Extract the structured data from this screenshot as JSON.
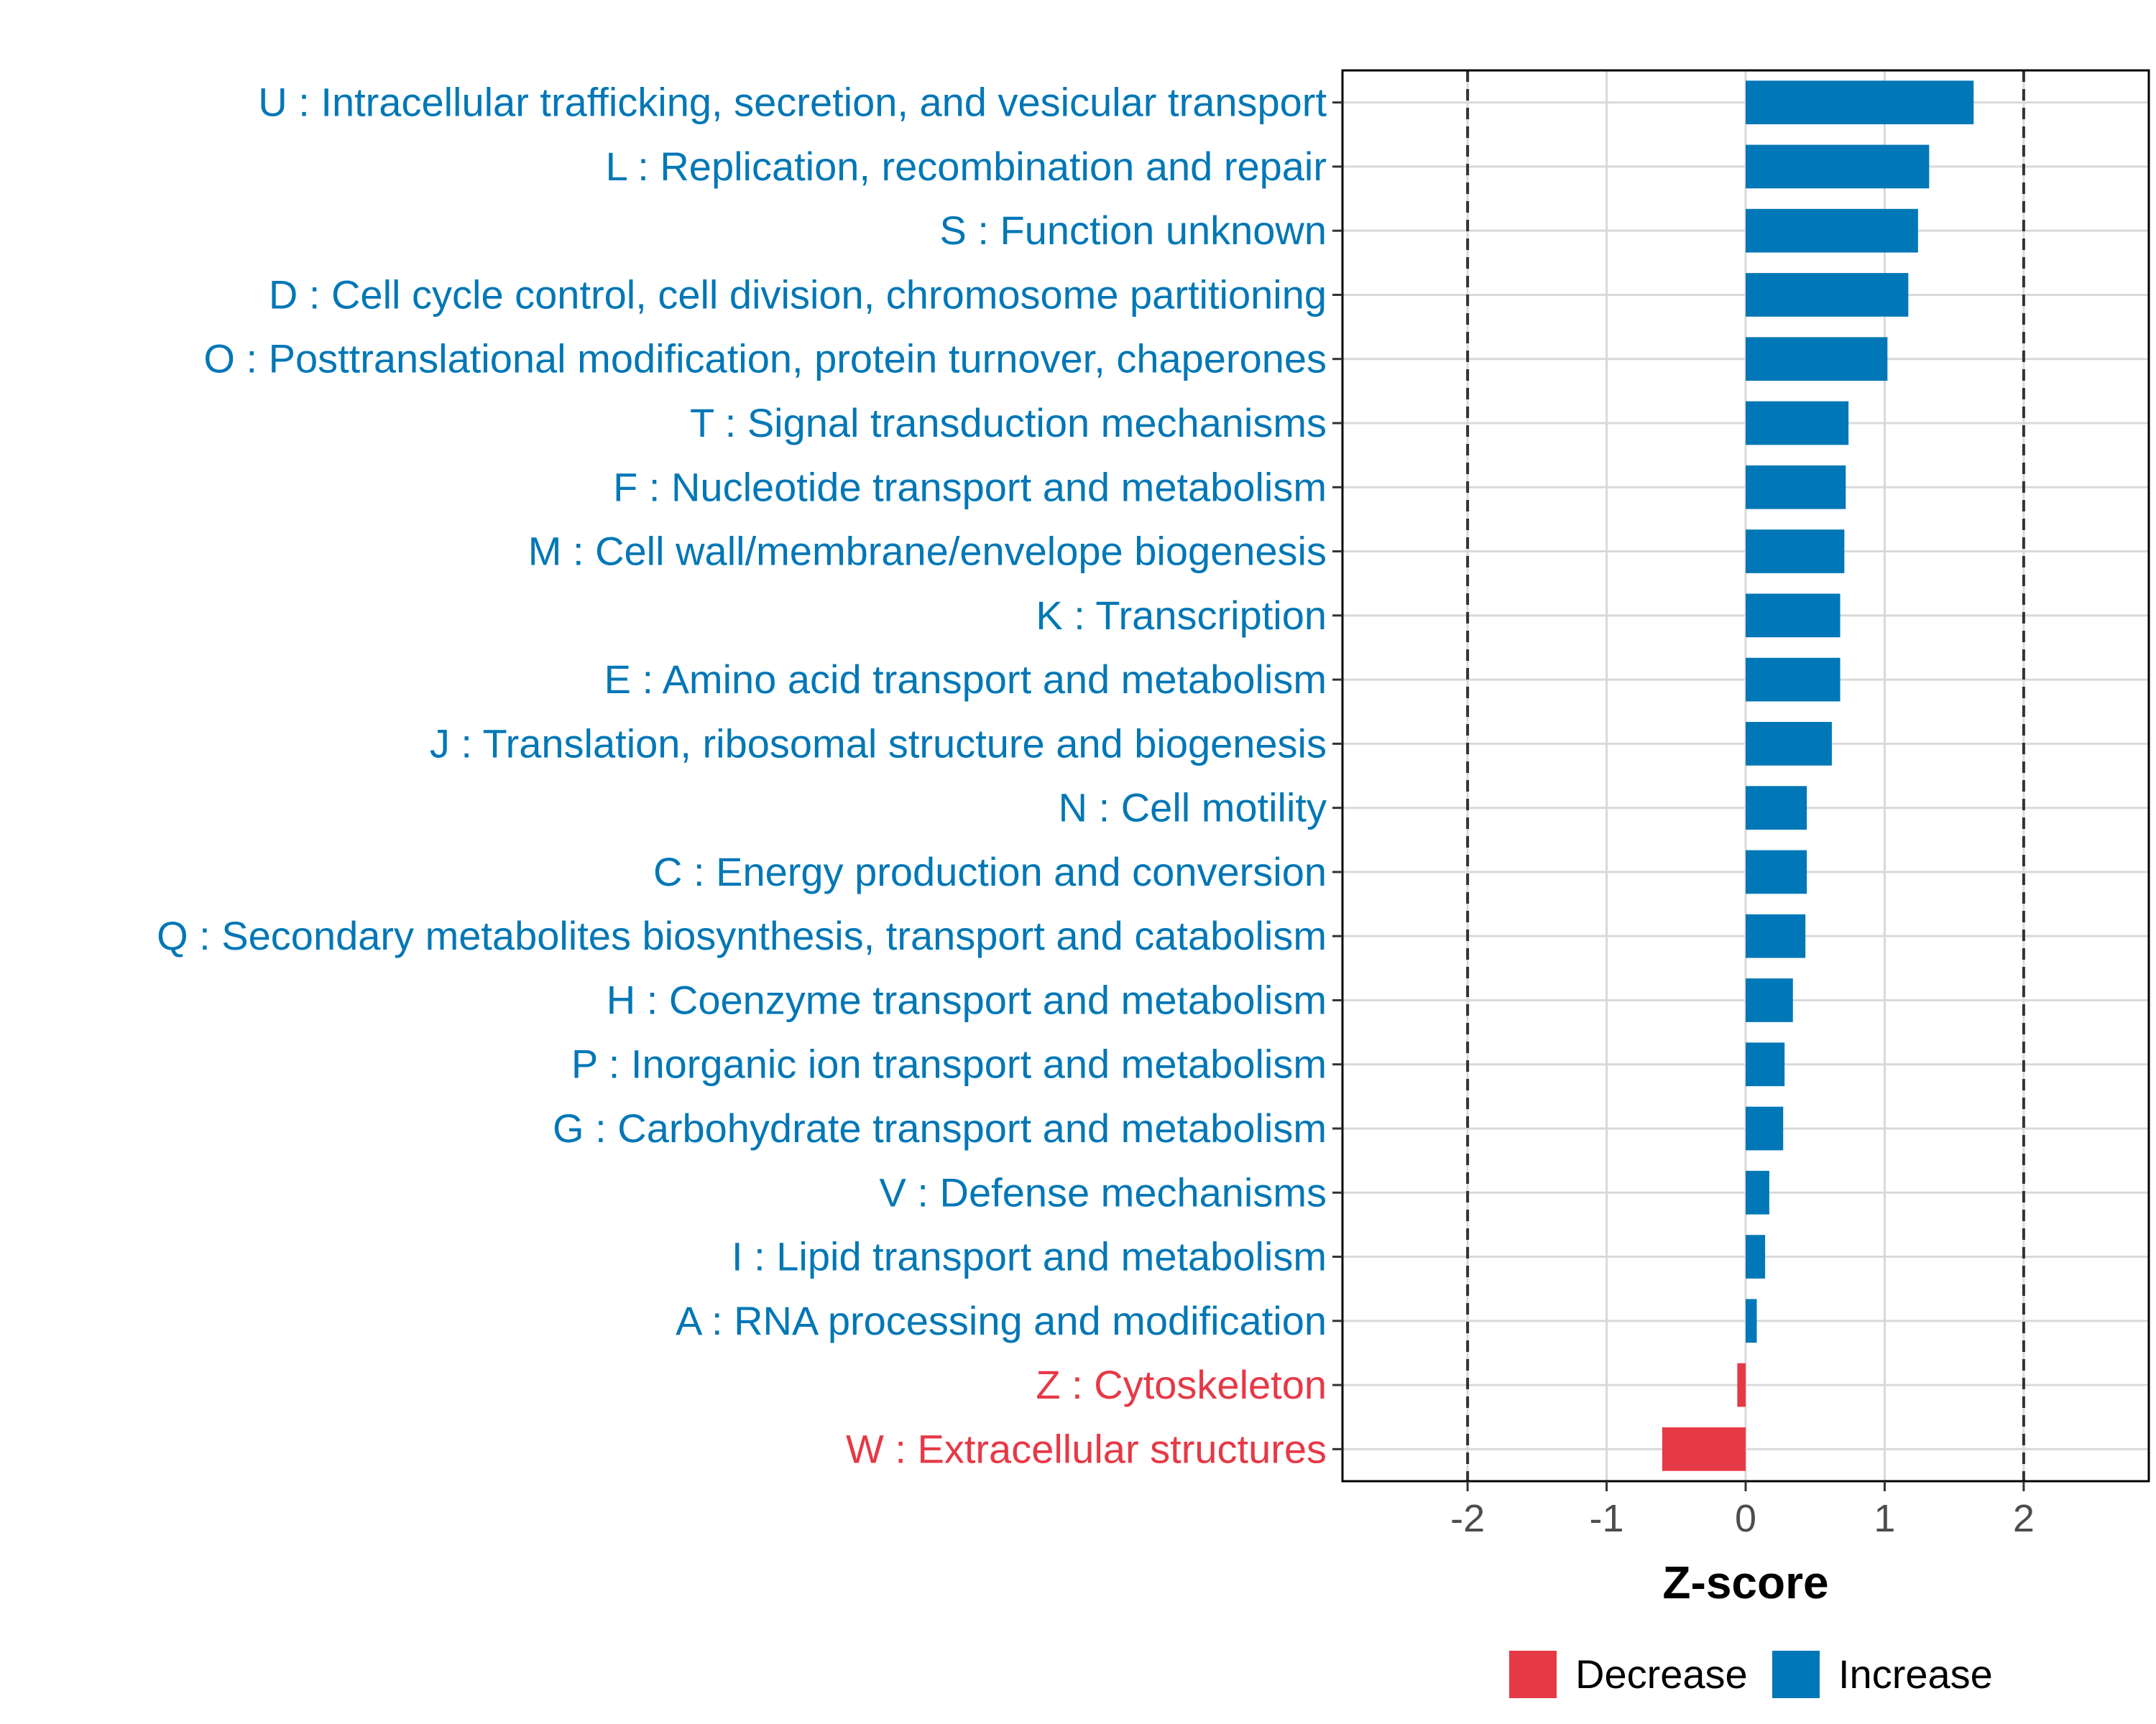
{
  "chart_data": {
    "type": "bar",
    "orientation": "horizontal",
    "xlabel": "Z-score",
    "ylabel": "",
    "xlim": [
      -2.9,
      2.9
    ],
    "xticks": [
      -2,
      -1,
      0,
      1,
      2
    ],
    "xtick_labels": [
      "-2",
      "-1",
      "0",
      "1",
      "2"
    ],
    "reference_lines": [
      -2,
      2
    ],
    "grid": true,
    "legend_position": "bottom",
    "colors": {
      "Decrease": "#e63946",
      "Increase": "#0077b6"
    },
    "legend": [
      {
        "label": "Decrease",
        "color": "#e63946"
      },
      {
        "label": "Increase",
        "color": "#0077b6"
      }
    ],
    "categories": [
      "U : Intracellular trafficking, secretion, and vesicular transport",
      "L : Replication, recombination and repair",
      "S : Function unknown",
      "D : Cell cycle control, cell division, chromosome partitioning",
      "O : Posttranslational modification, protein turnover, chaperones",
      "T : Signal transduction mechanisms",
      "F : Nucleotide transport and metabolism",
      "M : Cell wall/membrane/envelope biogenesis",
      "K : Transcription",
      "E : Amino acid transport and metabolism",
      "J : Translation, ribosomal structure and biogenesis",
      "N : Cell motility",
      "C : Energy production and conversion",
      "Q : Secondary metabolites biosynthesis, transport and catabolism",
      "H : Coenzyme transport and metabolism",
      "P : Inorganic ion transport and metabolism",
      "G : Carbohydrate transport and metabolism",
      "V : Defense mechanisms",
      "I : Lipid transport and metabolism",
      "A : RNA processing and modification",
      "Z : Cytoskeleton",
      "W : Extracellular structures"
    ],
    "values": [
      1.64,
      1.32,
      1.24,
      1.17,
      1.02,
      0.74,
      0.72,
      0.71,
      0.68,
      0.68,
      0.62,
      0.44,
      0.44,
      0.43,
      0.34,
      0.28,
      0.27,
      0.17,
      0.14,
      0.08,
      -0.06,
      -0.6
    ],
    "groups": [
      "Increase",
      "Increase",
      "Increase",
      "Increase",
      "Increase",
      "Increase",
      "Increase",
      "Increase",
      "Increase",
      "Increase",
      "Increase",
      "Increase",
      "Increase",
      "Increase",
      "Increase",
      "Increase",
      "Increase",
      "Increase",
      "Increase",
      "Increase",
      "Decrease",
      "Decrease"
    ]
  }
}
